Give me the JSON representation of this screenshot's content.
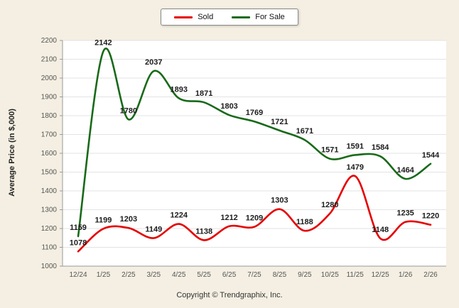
{
  "page": {
    "copyright": "Copyright © Trendgraphix, Inc."
  },
  "legend": {
    "items": [
      {
        "label": "Sold",
        "color": "#e60000"
      },
      {
        "label": "For Sale",
        "color": "#186a18"
      }
    ]
  },
  "chart_data": {
    "type": "line",
    "x": [
      "12/24",
      "1/25",
      "2/25",
      "3/25",
      "4/25",
      "5/25",
      "6/25",
      "7/25",
      "8/25",
      "9/25",
      "10/25",
      "11/25",
      "12/25",
      "1/26",
      "2/26"
    ],
    "series": [
      {
        "name": "Sold",
        "color": "#e60000",
        "values": [
          1078,
          1199,
          1203,
          1149,
          1224,
          1138,
          1212,
          1209,
          1303,
          1188,
          1280,
          1479,
          1148,
          1235,
          1220
        ]
      },
      {
        "name": "For Sale",
        "color": "#186a18",
        "values": [
          1159,
          2142,
          1780,
          2037,
          1893,
          1871,
          1803,
          1769,
          1721,
          1671,
          1571,
          1591,
          1584,
          1464,
          1544
        ]
      }
    ],
    "title": "",
    "xlabel": "",
    "ylabel": "Average Price (in $,000)",
    "ylim": [
      1000,
      2200
    ],
    "ytick_step": 100,
    "grid": true,
    "legend_position": "top-center",
    "data_labels": true
  },
  "colors": {
    "background": "#f4efe2",
    "plot_background": "#ffffff",
    "gridline": "#e3e3e3",
    "axis": "#9a9a9a",
    "tick_text": "#555555",
    "label_text": "#1c1c1c"
  }
}
